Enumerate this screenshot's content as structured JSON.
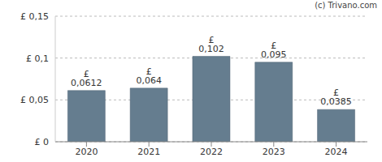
{
  "chart_data": {
    "type": "bar",
    "annotations": [
      "(c) Trivano.com"
    ],
    "categories": [
      "2020",
      "2021",
      "2022",
      "2023",
      "2024"
    ],
    "values": [
      0.0612,
      0.064,
      0.102,
      0.095,
      0.0385
    ],
    "value_labels": [
      "£ 0,0612",
      "£ 0,064",
      "£ 0,102",
      "£ 0,095",
      "£ 0,0385"
    ],
    "color": "#657d8f",
    "ylim": [
      0,
      0.15
    ],
    "yticks": [
      {
        "value": 0,
        "label": "£ 0"
      },
      {
        "value": 0.05,
        "label": "£ 0,05"
      },
      {
        "value": 0.1,
        "label": "£ 0,1"
      },
      {
        "value": 0.15,
        "label": "£ 0,15"
      }
    ],
    "grid": true,
    "data_labels": true
  }
}
